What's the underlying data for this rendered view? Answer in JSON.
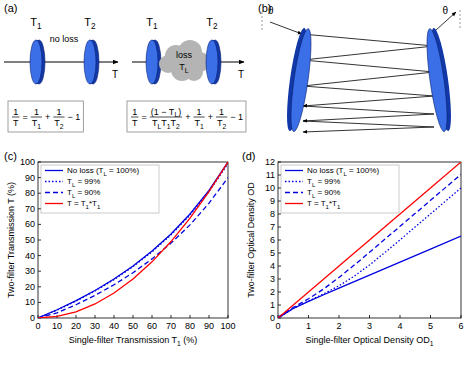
{
  "chart_data": [
    {
      "type": "line",
      "panel_label": "(c)",
      "x_label": "Single-filter Transmission T1 (%)",
      "y_label": "Two-filter Transmission T (%)",
      "x": [
        0,
        10,
        20,
        30,
        40,
        50,
        60,
        70,
        80,
        90,
        100
      ],
      "xlim": [
        0,
        100
      ],
      "ylim": [
        0,
        100
      ],
      "xticks": [
        0,
        10,
        20,
        30,
        40,
        50,
        60,
        70,
        80,
        90,
        100
      ],
      "yticks": [
        0,
        10,
        20,
        30,
        40,
        50,
        60,
        70,
        80,
        90,
        100
      ],
      "grid": false,
      "legend": "upper left",
      "series": [
        {
          "name": "No loss (TL = 100%)",
          "color": "#0000e0",
          "line_style": "solid",
          "values": [
            0,
            5.3,
            11.1,
            17.6,
            25,
            33.3,
            42.9,
            53.8,
            66.7,
            81.8,
            100
          ]
        },
        {
          "name": "TL = 99%",
          "color": "#0000e0",
          "line_style": "dotted",
          "values": [
            0,
            5.0,
            10.8,
            17.3,
            24.6,
            32.9,
            42.4,
            53.3,
            66.0,
            81.0,
            99.0
          ]
        },
        {
          "name": "TL = 90%",
          "color": "#0000e0",
          "line_style": "dashed",
          "values": [
            0,
            3.3,
            8.5,
            14.5,
            21.3,
            29.0,
            37.9,
            48.0,
            59.7,
            73.6,
            90.0
          ]
        },
        {
          "name": "T = T1*T1",
          "color": "#ff0000",
          "line_style": "solid",
          "values": [
            0,
            1,
            4,
            9,
            16,
            25,
            36,
            49,
            64,
            81,
            100
          ]
        }
      ]
    },
    {
      "type": "line",
      "panel_label": "(d)",
      "x_label": "Single-filter Optical Density OD1",
      "y_label": "Two-filter Optical Density OD",
      "x": [
        0,
        0.5,
        1,
        1.5,
        2,
        2.5,
        3,
        3.5,
        4,
        5,
        6
      ],
      "xlim": [
        0,
        6
      ],
      "ylim": [
        0,
        12
      ],
      "xticks": [
        0,
        1,
        2,
        3,
        4,
        5,
        6
      ],
      "yticks": [
        0,
        1,
        2,
        3,
        4,
        5,
        6,
        7,
        8,
        9,
        10,
        11,
        12
      ],
      "grid": false,
      "legend": "upper left",
      "series": [
        {
          "name": "No loss (TL = 100%)",
          "color": "#0000e0",
          "line_style": "solid",
          "values": [
            0,
            0.73,
            1.28,
            1.79,
            2.3,
            2.8,
            3.3,
            3.8,
            4.3,
            5.3,
            6.3
          ]
        },
        {
          "name": "TL = 99%",
          "color": "#0000e0",
          "line_style": "dotted",
          "values": [
            0,
            0.73,
            1.3,
            1.86,
            2.48,
            3.22,
            4.08,
            5.03,
            6.01,
            8.01,
            10.0
          ]
        },
        {
          "name": "TL = 90%",
          "color": "#0000e0",
          "line_style": "dashed",
          "values": [
            0.05,
            0.81,
            1.48,
            2.24,
            3.12,
            4.07,
            5.05,
            6.05,
            7.05,
            9.05,
            11.05
          ]
        },
        {
          "name": "T = T1*T1",
          "color": "#ff0000",
          "line_style": "solid",
          "values": [
            0,
            1,
            2,
            3,
            4,
            5,
            6,
            7,
            8,
            10,
            12
          ]
        }
      ]
    }
  ],
  "diagrams": {
    "a": {
      "label": "(a)",
      "left": {
        "filters": [
          "T1",
          "T2"
        ],
        "medium": [
          "no loss"
        ],
        "output": "T",
        "formula": {
          "lhs": {
            "num": "1",
            "den": "T"
          },
          "equals": "=",
          "plus": "+",
          "terms": [
            {
              "num": "1",
              "den": "T1"
            },
            {
              "num": "1",
              "den": "T2"
            }
          ],
          "tail": "− 1"
        }
      },
      "right": {
        "filters": [
          "T1",
          "T2"
        ],
        "medium": [
          "loss",
          "TL"
        ],
        "output": "T",
        "formula": {
          "lhs": {
            "num": "1",
            "den": "T"
          },
          "equals": "=",
          "plus": "+",
          "terms": [
            {
              "num": "(1 − TL)",
              "den": "TLT1T2"
            },
            {
              "num": "1",
              "den": "T1"
            },
            {
              "num": "1",
              "den": "T2"
            }
          ],
          "tail": "− 1"
        }
      }
    },
    "b": {
      "label": "(b)",
      "angles": [
        "θ",
        "θ"
      ]
    }
  }
}
